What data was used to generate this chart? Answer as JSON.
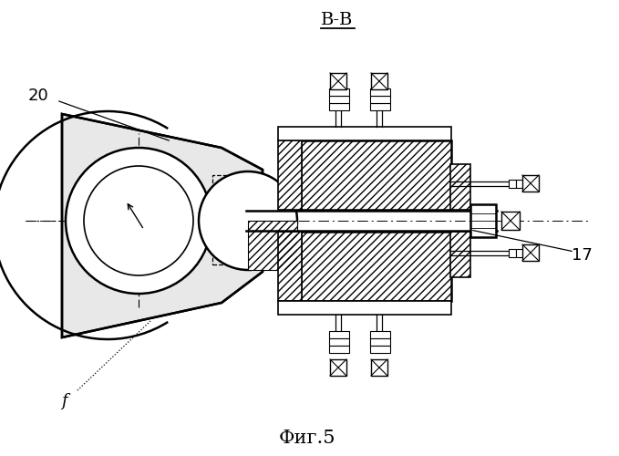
{
  "title": "В-В",
  "caption": "Фиг.5",
  "label_20": "20",
  "label_17": "17",
  "label_f": "f",
  "bg_color": "#ffffff",
  "line_color": "#000000"
}
